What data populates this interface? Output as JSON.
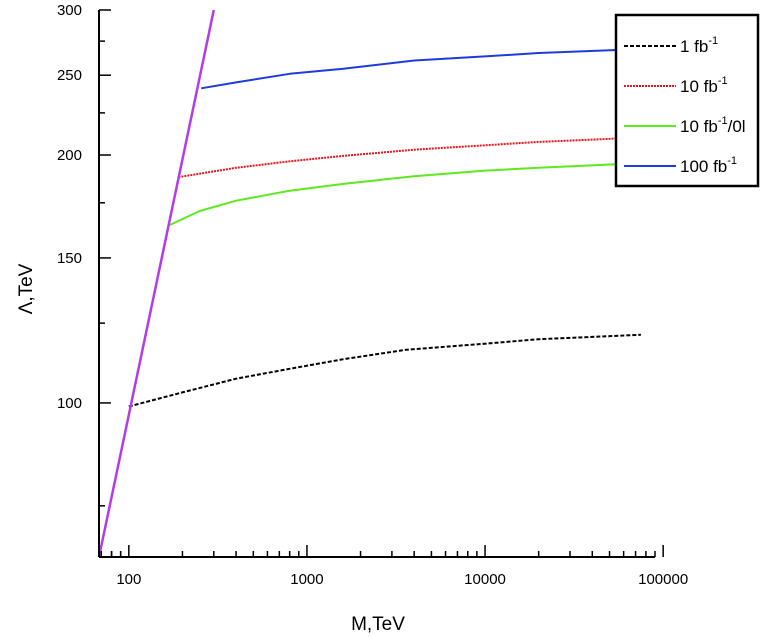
{
  "chart_data": {
    "type": "line",
    "xlabel": "M,TeV",
    "ylabel": "Λ,TeV",
    "xscale": "log",
    "yscale": "log",
    "xlim": [
      68,
      90000
    ],
    "ylim": [
      65,
      300
    ],
    "x_ticks": [
      {
        "value": 100,
        "label": "100"
      },
      {
        "value": 1000,
        "label": "1000"
      },
      {
        "value": 10000,
        "label": "10000"
      },
      {
        "value": 100000,
        "label": "100000"
      }
    ],
    "y_ticks": [
      {
        "value": 100,
        "label": "100"
      },
      {
        "value": 150,
        "label": "150"
      },
      {
        "value": 200,
        "label": "200"
      },
      {
        "value": 250,
        "label": "250"
      },
      {
        "value": 300,
        "label": "300"
      }
    ],
    "legend_position": "top-right",
    "series": [
      {
        "name_base": "1 fb",
        "name_sup": "-1",
        "name_suffix": "",
        "color": "#000000",
        "style": "dashed",
        "x": [
          100,
          200,
          400,
          800,
          1600,
          3600,
          10000,
          20000,
          75000
        ],
        "y": [
          99,
          103,
          107,
          110,
          113,
          116,
          118,
          119.5,
          121
        ]
      },
      {
        "name_base": "10 fb",
        "name_sup": "-1",
        "name_suffix": "",
        "color": "#e8141e",
        "style": "dotted",
        "x": [
          190,
          400,
          800,
          1600,
          4000,
          10000,
          20000,
          73000
        ],
        "y": [
          188,
          193,
          196.5,
          199.5,
          203,
          205.5,
          207.5,
          210
        ]
      },
      {
        "name_base": "10 fb",
        "name_sup": "-1",
        "name_suffix": "/0l",
        "color": "#5ee81e",
        "style": "solid",
        "x": [
          165,
          250,
          400,
          800,
          1600,
          4000,
          10000,
          20000,
          75000
        ],
        "y": [
          164,
          171,
          176,
          181,
          184.5,
          188.5,
          191.5,
          193,
          195.5
        ]
      },
      {
        "name_base": "100 fb",
        "name_sup": "-1",
        "name_suffix": "",
        "color": "#1e3cdc",
        "style": "solid",
        "x": [
          255,
          400,
          800,
          1600,
          4000,
          10000,
          20000,
          75000
        ],
        "y": [
          241,
          245,
          251,
          254.5,
          260.5,
          263.5,
          266,
          269
        ]
      },
      {
        "name_base": "",
        "name_sup": "",
        "name_suffix": "",
        "color": "#b43ce6",
        "style": "solid",
        "in_legend": false,
        "x": [
          68,
          300
        ],
        "y": [
          65,
          300
        ]
      }
    ]
  }
}
